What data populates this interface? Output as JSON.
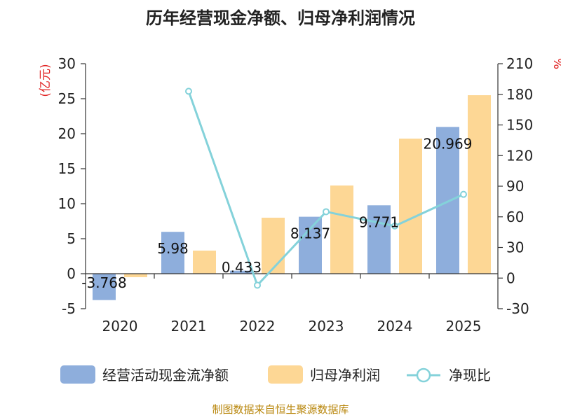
{
  "chart_data": {
    "type": "bar",
    "title": "历年经营现金净额、归母净利润情况",
    "categories": [
      "2020",
      "2021",
      "2022",
      "2023",
      "2024",
      "2025"
    ],
    "y_left": {
      "unit": "(亿元)",
      "range": [
        -5,
        30
      ],
      "ticks": [
        -5,
        0,
        5,
        10,
        15,
        20,
        25,
        30
      ]
    },
    "y_right": {
      "unit": "%",
      "range": [
        -30,
        210
      ],
      "ticks": [
        -30,
        0,
        30,
        60,
        90,
        120,
        150,
        180,
        210
      ]
    },
    "series": [
      {
        "name": "经营活动现金流净额",
        "kind": "bar",
        "axis": "left",
        "color": "#8eaedc",
        "values": [
          -3.768,
          5.98,
          0.433,
          8.137,
          9.771,
          20.969
        ],
        "labels": [
          "-3.768",
          "5.98",
          "0.433",
          "8.137",
          "9.771",
          "20.969"
        ]
      },
      {
        "name": "归母净利润",
        "kind": "bar",
        "axis": "left",
        "color": "#fdd795",
        "values": [
          -0.5,
          3.3,
          8.0,
          12.6,
          19.3,
          25.5
        ]
      },
      {
        "name": "净现比",
        "kind": "line",
        "axis": "right",
        "color": "#84d2da",
        "values": [
          null,
          183,
          -7,
          65,
          51,
          82
        ]
      }
    ],
    "legend_position": "bottom"
  },
  "source": "制图数据来自恒生聚源数据库"
}
